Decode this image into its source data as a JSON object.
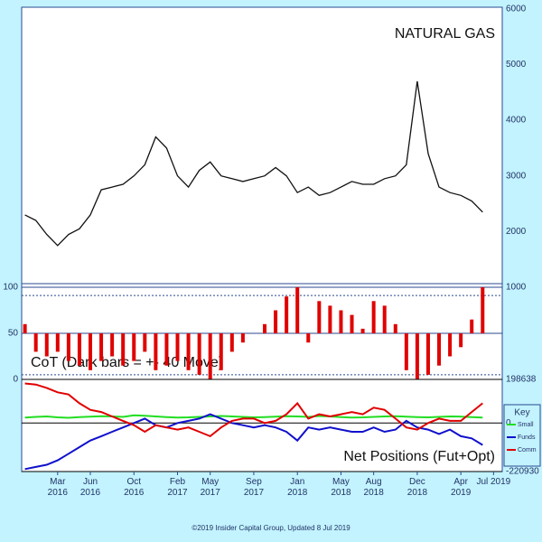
{
  "chart_data": [
    {
      "type": "line",
      "title": "NATURAL GAS",
      "x": [
        -1,
        0,
        1,
        2,
        3,
        4,
        5,
        6,
        7,
        8,
        9,
        10,
        11,
        12,
        13,
        14,
        15,
        16,
        17,
        18,
        19,
        20,
        21,
        22,
        23,
        24,
        25,
        26,
        27,
        28,
        29,
        30,
        31,
        32,
        33,
        34,
        35,
        36,
        37,
        38,
        39,
        40,
        41
      ],
      "xlim": [
        -1.3,
        42.8
      ],
      "series": [
        {
          "name": "NATURAL GAS",
          "color": "#111111",
          "values": [
            2300,
            2200,
            1950,
            1750,
            1950,
            2050,
            2300,
            2750,
            2800,
            2850,
            3000,
            3200,
            3700,
            3500,
            3000,
            2800,
            3100,
            3250,
            3000,
            2950,
            2900,
            2950,
            3000,
            3150,
            3000,
            2700,
            2800,
            2650,
            2700,
            2800,
            2900,
            2850,
            2850,
            2950,
            3000,
            3200,
            4700,
            3400,
            2800,
            2700,
            2650,
            2550,
            2350
          ]
        }
      ],
      "ylim": [
        1000,
        6030
      ],
      "yticks": [
        1000,
        2000,
        3000,
        4000,
        5000,
        6000
      ],
      "grid": false
    },
    {
      "type": "bar",
      "title": "CoT (Dark bars = +- 40 Move)",
      "x": [
        -1,
        0,
        1,
        2,
        3,
        4,
        5,
        6,
        7,
        8,
        9,
        10,
        11,
        12,
        13,
        14,
        15,
        16,
        17,
        18,
        19,
        20,
        21,
        22,
        23,
        24,
        25,
        26,
        27,
        28,
        29,
        30,
        31,
        32,
        33,
        34,
        35,
        36,
        37,
        38,
        39,
        40,
        41
      ],
      "xlim": [
        -1.3,
        42.8
      ],
      "values": [
        60,
        30,
        25,
        30,
        20,
        15,
        10,
        20,
        25,
        15,
        20,
        30,
        10,
        15,
        20,
        10,
        5,
        0,
        10,
        30,
        40,
        50,
        60,
        75,
        90,
        100,
        40,
        85,
        80,
        75,
        70,
        55,
        85,
        80,
        60,
        10,
        0,
        5,
        15,
        25,
        35,
        65,
        100
      ],
      "color": "#e00000",
      "base": 50,
      "ylim": [
        0,
        100
      ],
      "yticks": [
        0,
        50,
        100
      ],
      "grid": true,
      "reference_lines": [
        5,
        91
      ]
    },
    {
      "type": "line",
      "title": "Net Positions (Fut+Opt)",
      "x": [
        -1,
        0,
        1,
        2,
        3,
        4,
        5,
        6,
        7,
        8,
        9,
        10,
        11,
        12,
        13,
        14,
        15,
        16,
        17,
        18,
        19,
        20,
        21,
        22,
        23,
        24,
        25,
        26,
        27,
        28,
        29,
        30,
        31,
        32,
        33,
        34,
        35,
        36,
        37,
        38,
        39,
        40,
        41
      ],
      "xlim": [
        -1.3,
        42.8
      ],
      "xticks": [
        {
          "value": 2,
          "label": "Mar 2016"
        },
        {
          "value": 5,
          "label": "Jun 2016"
        },
        {
          "value": 9,
          "label": "Oct 2016"
        },
        {
          "value": 13,
          "label": "Feb 2017"
        },
        {
          "value": 16,
          "label": "May 2017"
        },
        {
          "value": 20,
          "label": "Sep 2017"
        },
        {
          "value": 24,
          "label": "Jan 2018"
        },
        {
          "value": 28,
          "label": "May 2018"
        },
        {
          "value": 31,
          "label": "Aug 2018"
        },
        {
          "value": 35,
          "label": "Dec 2018"
        },
        {
          "value": 39,
          "label": "Apr 2019"
        },
        {
          "value": 42,
          "label": "Jul 2019"
        }
      ],
      "legend_title": "Key",
      "series": [
        {
          "name": "Small",
          "color": "#22dd22",
          "values": [
            25000,
            28000,
            30000,
            26000,
            24000,
            27000,
            29000,
            31000,
            30000,
            28000,
            35000,
            33000,
            30000,
            27000,
            25000,
            26000,
            28000,
            30000,
            32000,
            30000,
            28000,
            26000,
            27000,
            29000,
            31000,
            30000,
            28000,
            32000,
            30000,
            27000,
            25000,
            26000,
            28000,
            30000,
            31000,
            29000,
            27000,
            26000,
            28000,
            30000,
            29000,
            27000,
            25000
          ]
        },
        {
          "name": "Funds",
          "color": "#1010cc",
          "values": [
            -210000,
            -200000,
            -190000,
            -170000,
            -140000,
            -110000,
            -80000,
            -60000,
            -40000,
            -20000,
            0,
            20000,
            -10000,
            -20000,
            0,
            10000,
            20000,
            40000,
            20000,
            0,
            -10000,
            -20000,
            -10000,
            -20000,
            -40000,
            -80000,
            -20000,
            -30000,
            -20000,
            -30000,
            -40000,
            -40000,
            -20000,
            -40000,
            -30000,
            10000,
            -20000,
            -30000,
            -50000,
            -30000,
            -60000,
            -70000,
            -100000
          ]
        },
        {
          "name": "Comm",
          "color": "#e00000",
          "values": [
            180000,
            175000,
            160000,
            140000,
            130000,
            90000,
            60000,
            50000,
            30000,
            10000,
            -10000,
            -40000,
            -10000,
            -20000,
            -30000,
            -20000,
            -40000,
            -60000,
            -20000,
            10000,
            20000,
            20000,
            0,
            10000,
            40000,
            90000,
            20000,
            40000,
            30000,
            40000,
            50000,
            40000,
            70000,
            60000,
            20000,
            -20000,
            -30000,
            0,
            20000,
            10000,
            10000,
            50000,
            90000
          ]
        }
      ],
      "ylim": [
        -220930,
        198638
      ],
      "yticks": [
        -220930,
        0,
        198638
      ],
      "grid": true
    }
  ],
  "footer": "©2019 Insider Capital Group, Updated 8 Jul 2019"
}
